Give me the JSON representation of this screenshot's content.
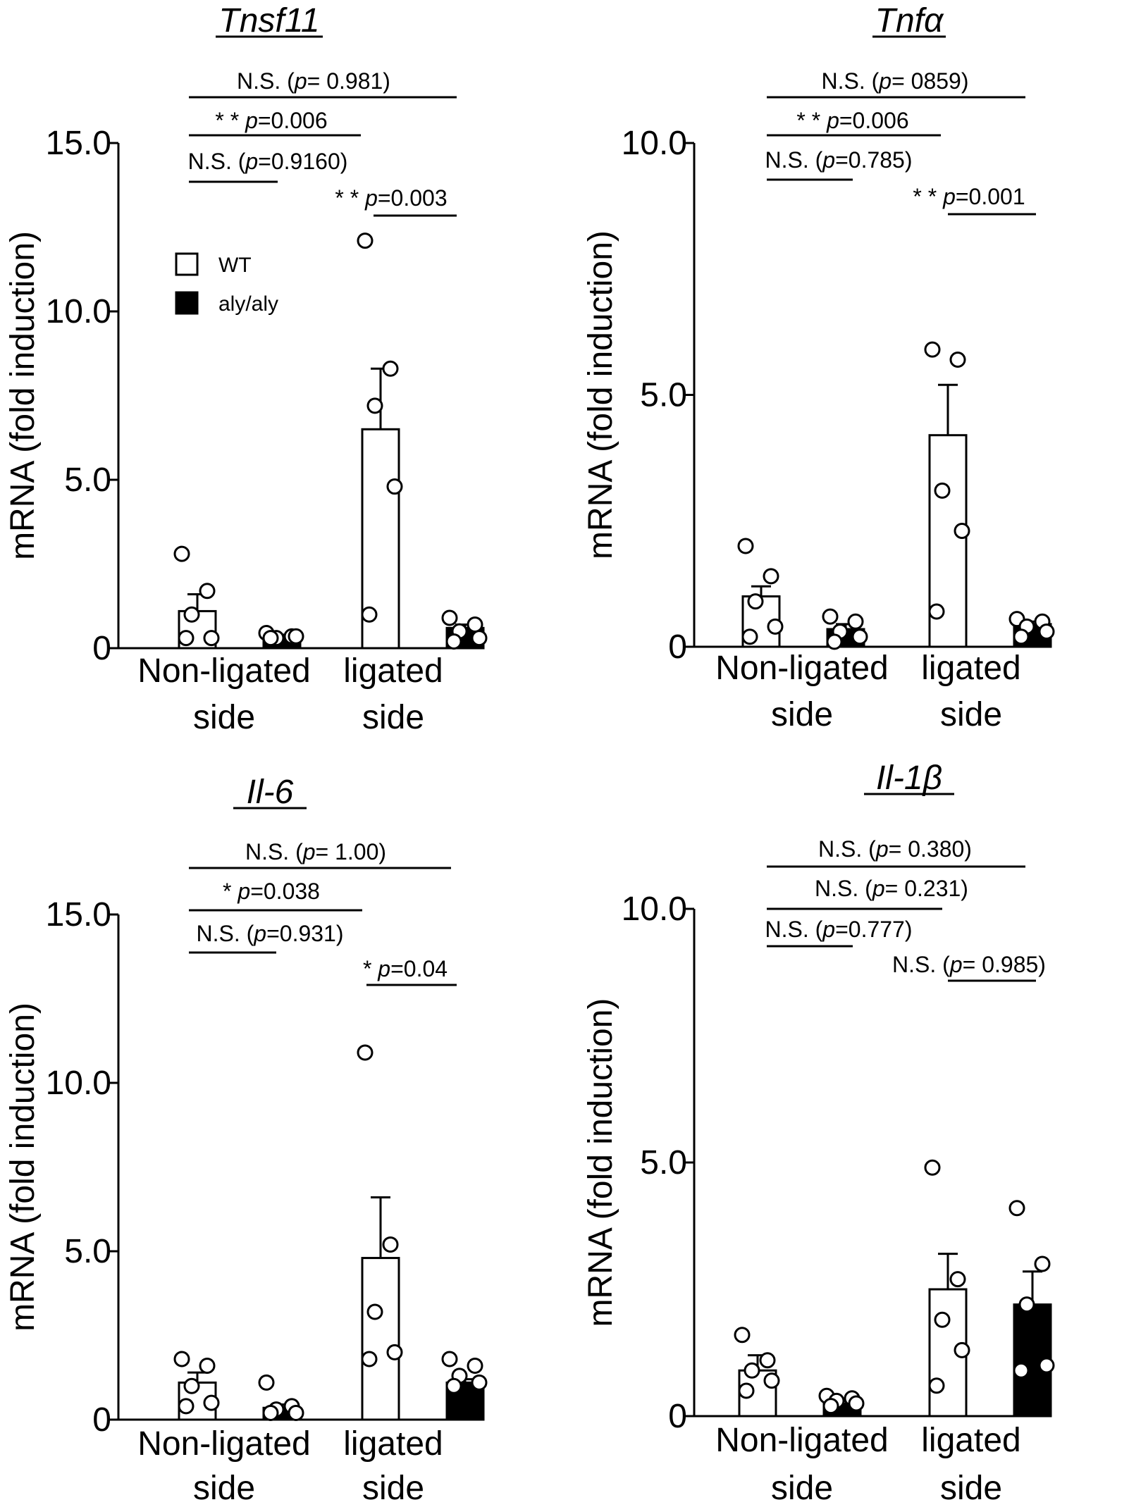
{
  "chart_data": [
    {
      "type": "bar",
      "title": "Tnsf11",
      "ylabel": "mRNA (fold induction)",
      "ylim": [
        0,
        15
      ],
      "yticks": [
        "0",
        "5.0",
        "10.0",
        "15.0"
      ],
      "yticks_values": [
        0,
        5,
        10,
        15
      ],
      "categories": [
        "Non-ligated side",
        "ligated side"
      ],
      "category_lines": [
        [
          "Non-ligated",
          "side"
        ],
        [
          "ligated",
          "side"
        ]
      ],
      "legend": {
        "position": "upper-left",
        "entries": [
          "WT",
          "aly/aly"
        ]
      },
      "series": [
        {
          "name": "WT",
          "fill": "#ffffff",
          "values": [
            1.1,
            6.5
          ],
          "errors": [
            0.5,
            1.8
          ],
          "points": [
            [
              2.8,
              1.7,
              1.0,
              0.3,
              0.3
            ],
            [
              12.1,
              8.3,
              7.2,
              4.8,
              1.0
            ]
          ]
        },
        {
          "name": "aly/aly",
          "fill": "#000000",
          "values": [
            0.35,
            0.6
          ],
          "errors": [
            0.05,
            0.1
          ],
          "points": [
            [
              0.45,
              0.35,
              0.3,
              0.35,
              0.3
            ],
            [
              0.9,
              0.7,
              0.5,
              0.3,
              0.2
            ]
          ]
        }
      ],
      "comparisons": [
        {
          "prefix": "N.S. (",
          "p": "p",
          "value": "= 0.981)"
        },
        {
          "prefix": "* * ",
          "p": "p",
          "value": "=0.006"
        },
        {
          "prefix": "N.S. (",
          "p": "p",
          "value": "=0.9160)"
        },
        {
          "prefix": "* * ",
          "p": "p",
          "value": "=0.003"
        }
      ]
    },
    {
      "type": "bar",
      "title": "Tnfα",
      "ylabel": "mRNA (fold induction)",
      "ylim": [
        0,
        10
      ],
      "yticks": [
        "0",
        "5.0",
        "10.0"
      ],
      "yticks_values": [
        0,
        5,
        10
      ],
      "categories": [
        "Non-ligated side",
        "ligated side"
      ],
      "category_lines": [
        [
          "Non-ligated",
          "side"
        ],
        [
          "ligated",
          "side"
        ]
      ],
      "series": [
        {
          "name": "WT",
          "fill": "#ffffff",
          "values": [
            1.0,
            4.2
          ],
          "errors": [
            0.2,
            1.0
          ],
          "points": [
            [
              2.0,
              1.4,
              0.9,
              0.4,
              0.2
            ],
            [
              5.9,
              5.7,
              3.1,
              2.3,
              0.7
            ]
          ]
        },
        {
          "name": "aly/aly",
          "fill": "#000000",
          "values": [
            0.35,
            0.45
          ],
          "errors": [
            0.1,
            0.05
          ],
          "points": [
            [
              0.6,
              0.5,
              0.3,
              0.2,
              0.1
            ],
            [
              0.55,
              0.5,
              0.4,
              0.3,
              0.2
            ]
          ]
        }
      ],
      "comparisons": [
        {
          "prefix": "N.S. (",
          "p": "p",
          "value": "= 0859)"
        },
        {
          "prefix": "* * ",
          "p": "p",
          "value": "=0.006"
        },
        {
          "prefix": "N.S. (",
          "p": "p",
          "value": "=0.785)"
        },
        {
          "prefix": "* * ",
          "p": "p",
          "value": "=0.001"
        }
      ]
    },
    {
      "type": "bar",
      "title": "Il-6",
      "ylabel": "mRNA (fold induction)",
      "ylim": [
        0,
        15
      ],
      "yticks": [
        "0",
        "5.0",
        "10.0",
        "15.0"
      ],
      "yticks_values": [
        0,
        5,
        10,
        15
      ],
      "categories": [
        "Non-ligated side",
        "ligated side"
      ],
      "category_lines": [
        [
          "Non-ligated",
          "side"
        ],
        [
          "ligated",
          "side"
        ]
      ],
      "series": [
        {
          "name": "WT",
          "fill": "#ffffff",
          "values": [
            1.1,
            4.8
          ],
          "errors": [
            0.3,
            1.8
          ],
          "points": [
            [
              1.8,
              1.6,
              1.0,
              0.5,
              0.4
            ],
            [
              10.9,
              5.2,
              3.2,
              2.0,
              1.8
            ]
          ]
        },
        {
          "name": "aly/aly",
          "fill": "#000000",
          "values": [
            0.35,
            1.1
          ],
          "errors": [
            0.1,
            0.1
          ],
          "points": [
            [
              1.1,
              0.4,
              0.3,
              0.2,
              0.2
            ],
            [
              1.8,
              1.6,
              1.3,
              1.1,
              1.0
            ]
          ]
        }
      ],
      "comparisons": [
        {
          "prefix": "N.S. (",
          "p": "p",
          "value": "= 1.00)"
        },
        {
          "prefix": "* ",
          "p": "p",
          "value": "=0.038"
        },
        {
          "prefix": "N.S. (",
          "p": "p",
          "value": "=0.931)"
        },
        {
          "prefix": "* ",
          "p": "p",
          "value": "=0.04"
        }
      ]
    },
    {
      "type": "bar",
      "title": "Il-1β",
      "ylabel": "mRNA (fold induction)",
      "ylim": [
        0,
        10
      ],
      "yticks": [
        "0",
        "5.0",
        "10.0"
      ],
      "yticks_values": [
        0,
        5,
        10
      ],
      "categories": [
        "Non-ligated side",
        "ligated side"
      ],
      "category_lines": [
        [
          "Non-ligated",
          "side"
        ],
        [
          "ligated",
          "side"
        ]
      ],
      "series": [
        {
          "name": "WT",
          "fill": "#ffffff",
          "values": [
            0.9,
            2.5
          ],
          "errors": [
            0.3,
            0.7
          ],
          "points": [
            [
              1.6,
              1.1,
              0.9,
              0.7,
              0.5
            ],
            [
              4.9,
              2.7,
              1.9,
              1.3,
              0.6
            ]
          ]
        },
        {
          "name": "aly/aly",
          "fill": "#000000",
          "values": [
            0.25,
            2.2
          ],
          "errors": [
            0.05,
            0.65
          ],
          "points": [
            [
              0.4,
              0.35,
              0.3,
              0.25,
              0.2
            ],
            [
              4.1,
              3.0,
              2.2,
              1.0,
              0.9
            ]
          ]
        }
      ],
      "comparisons": [
        {
          "prefix": "N.S. (",
          "p": "p",
          "value": "= 0.380)"
        },
        {
          "prefix": "N.S. (",
          "p": "p",
          "value": "= 0.231)"
        },
        {
          "prefix": "N.S. (",
          "p": "p",
          "value": "=0.777)"
        },
        {
          "prefix": "N.S. (",
          "p": "p",
          "value": "= 0.985)"
        }
      ]
    }
  ]
}
